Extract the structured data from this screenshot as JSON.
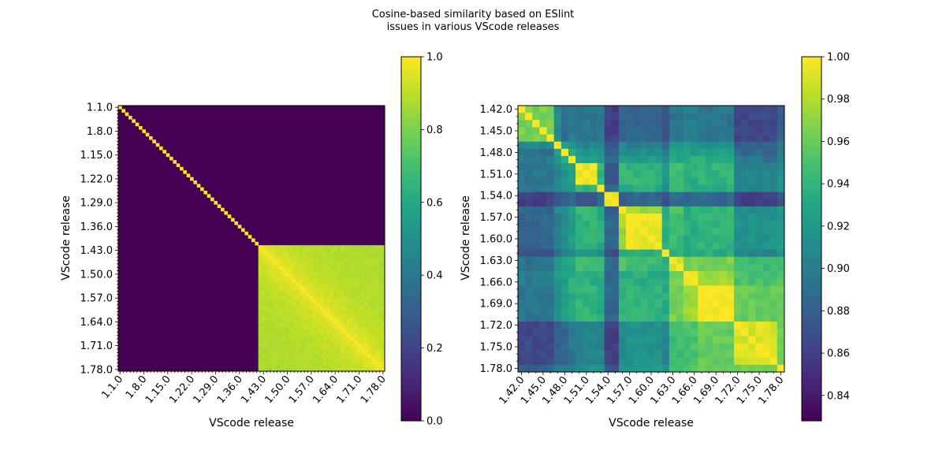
{
  "figure_title_line1": "Cosine-based similarity based on ESlint",
  "figure_title_line2": "issues in various VScode releases",
  "colors": [
    "#440154",
    "#482475",
    "#414487",
    "#355f8d",
    "#2a788e",
    "#21918c",
    "#22a884",
    "#44bf70",
    "#7ad151",
    "#bddf26",
    "#fde725"
  ],
  "chart_data": [
    {
      "type": "heatmap",
      "title": "",
      "xlabel": "VScode release",
      "ylabel": "VScode release",
      "releases_first": 1,
      "releases_last": 78,
      "tick_labels": [
        "1.1.0",
        "1.8.0",
        "1.15.0",
        "1.22.0",
        "1.29.0",
        "1.36.0",
        "1.43.0",
        "1.50.0",
        "1.57.0",
        "1.64.0",
        "1.71.0",
        "1.78.0"
      ],
      "block_start_release": 42,
      "within_block_base": 0.86,
      "colorbar": {
        "vmin": 0.0,
        "vmax": 1.0,
        "ticks": [
          "0.0",
          "0.2",
          "0.4",
          "0.6",
          "0.8",
          "1.0"
        ]
      },
      "description": "Identity on diagonal for releases 1.1-1.41 (zero elsewhere); releases 1.42-1.78 mutually similar (0.84-1.0)"
    },
    {
      "type": "heatmap",
      "title": "",
      "xlabel": "VScode release",
      "ylabel": "VScode release",
      "releases_first": 42,
      "releases_last": 78,
      "tick_labels": [
        "1.42.0",
        "1.45.0",
        "1.48.0",
        "1.51.0",
        "1.54.0",
        "1.57.0",
        "1.60.0",
        "1.63.0",
        "1.66.0",
        "1.69.0",
        "1.72.0",
        "1.75.0",
        "1.78.0"
      ],
      "groups": [
        {
          "from": 42,
          "to": 46
        },
        {
          "from": 47,
          "to": 47
        },
        {
          "from": 48,
          "to": 48
        },
        {
          "from": 49,
          "to": 49
        },
        {
          "from": 50,
          "to": 52
        },
        {
          "from": 53,
          "to": 53
        },
        {
          "from": 54,
          "to": 55
        },
        {
          "from": 56,
          "to": 56
        },
        {
          "from": 57,
          "to": 61
        },
        {
          "from": 62,
          "to": 62
        },
        {
          "from": 63,
          "to": 64
        },
        {
          "from": 65,
          "to": 66
        },
        {
          "from": 67,
          "to": 71
        },
        {
          "from": 72,
          "to": 77
        },
        {
          "from": 78,
          "to": 78
        }
      ],
      "group_matrix": [
        [
          0.965,
          0.91,
          0.89,
          0.9,
          0.895,
          0.9,
          0.86,
          0.88,
          0.885,
          0.875,
          0.895,
          0.9,
          0.895,
          0.865,
          0.88
        ],
        [
          0.91,
          1.0,
          0.925,
          0.92,
          0.905,
          0.91,
          0.875,
          0.905,
          0.9,
          0.89,
          0.915,
          0.92,
          0.915,
          0.88,
          0.895
        ],
        [
          0.89,
          0.925,
          1.0,
          0.935,
          0.915,
          0.92,
          0.88,
          0.915,
          0.91,
          0.895,
          0.925,
          0.925,
          0.925,
          0.885,
          0.9
        ],
        [
          0.9,
          0.92,
          0.935,
          1.0,
          0.93,
          0.925,
          0.885,
          0.925,
          0.925,
          0.905,
          0.93,
          0.935,
          0.935,
          0.895,
          0.905
        ],
        [
          0.895,
          0.905,
          0.915,
          0.93,
          0.995,
          0.94,
          0.87,
          0.945,
          0.94,
          0.915,
          0.945,
          0.935,
          0.94,
          0.905,
          0.915
        ],
        [
          0.9,
          0.91,
          0.92,
          0.925,
          0.94,
          0.99,
          0.885,
          0.93,
          0.935,
          0.91,
          0.94,
          0.935,
          0.935,
          0.905,
          0.91
        ],
        [
          0.86,
          0.875,
          0.88,
          0.885,
          0.87,
          0.885,
          1.0,
          0.88,
          0.885,
          0.87,
          0.89,
          0.885,
          0.885,
          0.86,
          0.875
        ],
        [
          0.88,
          0.905,
          0.915,
          0.925,
          0.945,
          0.93,
          0.88,
          0.99,
          0.975,
          0.93,
          0.95,
          0.935,
          0.94,
          0.91,
          0.915
        ],
        [
          0.885,
          0.9,
          0.91,
          0.925,
          0.94,
          0.935,
          0.885,
          0.975,
          0.995,
          0.935,
          0.945,
          0.935,
          0.94,
          0.915,
          0.92
        ],
        [
          0.875,
          0.89,
          0.895,
          0.905,
          0.915,
          0.91,
          0.87,
          0.93,
          0.935,
          1.0,
          0.935,
          0.93,
          0.935,
          0.905,
          0.91
        ],
        [
          0.895,
          0.915,
          0.925,
          0.93,
          0.945,
          0.94,
          0.89,
          0.95,
          0.945,
          0.935,
          0.99,
          0.965,
          0.965,
          0.945,
          0.95
        ],
        [
          0.9,
          0.92,
          0.925,
          0.935,
          0.935,
          0.935,
          0.885,
          0.935,
          0.935,
          0.93,
          0.965,
          0.99,
          0.975,
          0.95,
          0.955
        ],
        [
          0.895,
          0.915,
          0.925,
          0.935,
          0.94,
          0.935,
          0.885,
          0.94,
          0.94,
          0.935,
          0.965,
          0.975,
          0.995,
          0.96,
          0.96
        ],
        [
          0.865,
          0.88,
          0.885,
          0.895,
          0.905,
          0.905,
          0.86,
          0.91,
          0.915,
          0.905,
          0.945,
          0.95,
          0.96,
          0.99,
          0.965
        ],
        [
          0.88,
          0.895,
          0.9,
          0.905,
          0.915,
          0.91,
          0.875,
          0.915,
          0.92,
          0.91,
          0.95,
          0.955,
          0.96,
          0.965,
          1.0
        ]
      ],
      "colorbar": {
        "vmin": 0.828,
        "vmax": 1.0,
        "ticks": [
          "0.84",
          "0.86",
          "0.88",
          "0.90",
          "0.92",
          "0.94",
          "0.96",
          "0.98",
          "1.00"
        ]
      }
    }
  ]
}
